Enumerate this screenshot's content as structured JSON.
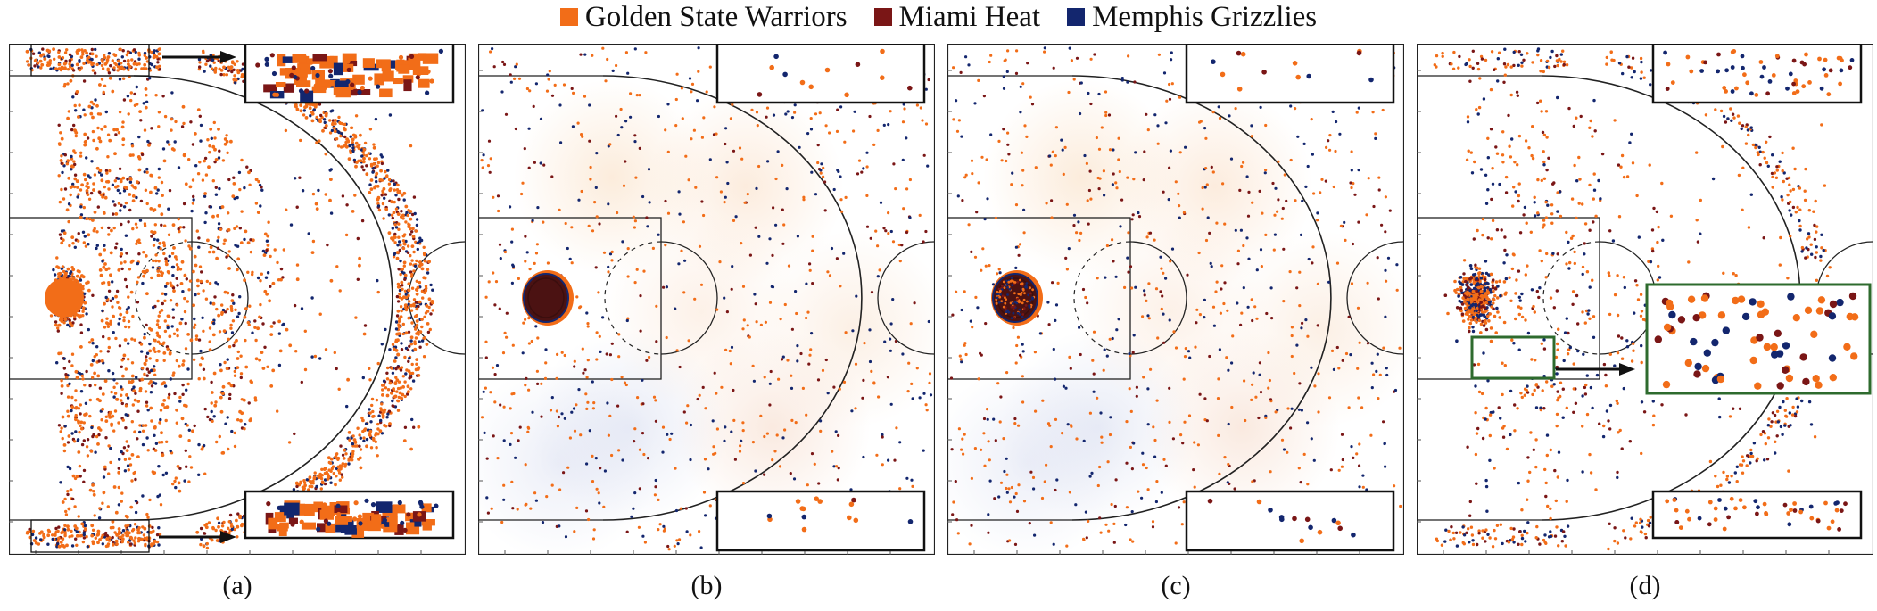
{
  "legend": {
    "items": [
      {
        "label": "Golden State Warriors",
        "color": "#f26d18"
      },
      {
        "label": "Miami Heat",
        "color": "#7a1616"
      },
      {
        "label": "Memphis Grizzlies",
        "color": "#13266e"
      }
    ]
  },
  "panels": [
    {
      "caption": "(a)"
    },
    {
      "caption": "(b)"
    },
    {
      "caption": "(c)"
    },
    {
      "caption": "(d)"
    }
  ],
  "chart_data": [
    {
      "type": "scatter",
      "panel": "(a)",
      "series": [
        {
          "name": "Golden State Warriors"
        },
        {
          "name": "Miami Heat"
        },
        {
          "name": "Memphis Grizzlies"
        }
      ],
      "insets": 2,
      "arrows": 2
    },
    {
      "type": "scatter",
      "panel": "(b)",
      "series": [
        {
          "name": "Golden State Warriors"
        },
        {
          "name": "Miami Heat"
        },
        {
          "name": "Memphis Grizzlies"
        }
      ],
      "insets": 2,
      "density_background": true
    },
    {
      "type": "scatter",
      "panel": "(c)",
      "series": [
        {
          "name": "Golden State Warriors"
        },
        {
          "name": "Miami Heat"
        },
        {
          "name": "Memphis Grizzlies"
        }
      ],
      "insets": 2,
      "density_background": true
    },
    {
      "type": "scatter",
      "panel": "(d)",
      "series": [
        {
          "name": "Golden State Warriors"
        },
        {
          "name": "Miami Heat"
        },
        {
          "name": "Memphis Grizzlies"
        }
      ],
      "insets": 3,
      "zoom_box_color": "#2e6b2e"
    }
  ]
}
